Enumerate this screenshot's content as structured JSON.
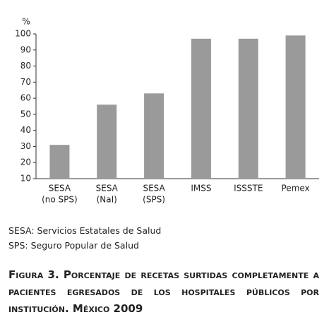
{
  "chart_data": {
    "type": "bar",
    "y_label": "%",
    "categories": [
      [
        "SESA",
        "(no SPS)"
      ],
      [
        "SESA",
        "(NaI)"
      ],
      [
        "SESA",
        "(SPS)"
      ],
      [
        "IMSS"
      ],
      [
        "ISSSTE"
      ],
      [
        "Pemex"
      ]
    ],
    "values": [
      31,
      56,
      63,
      97,
      97,
      99
    ],
    "color": "#9a9a9a",
    "ylim": [
      10,
      100
    ],
    "yticks": [
      10,
      20,
      30,
      40,
      50,
      60,
      70,
      80,
      90,
      100
    ],
    "grid": false
  },
  "notes": [
    "SESA: Servicios Estatales de Salud",
    "SPS: Seguro Popular de Salud"
  ],
  "caption": "Figura 3. Porcentaje de recetas surtidas completamente a pacientes egresados de los hospitales públicos por institución. México 2009"
}
